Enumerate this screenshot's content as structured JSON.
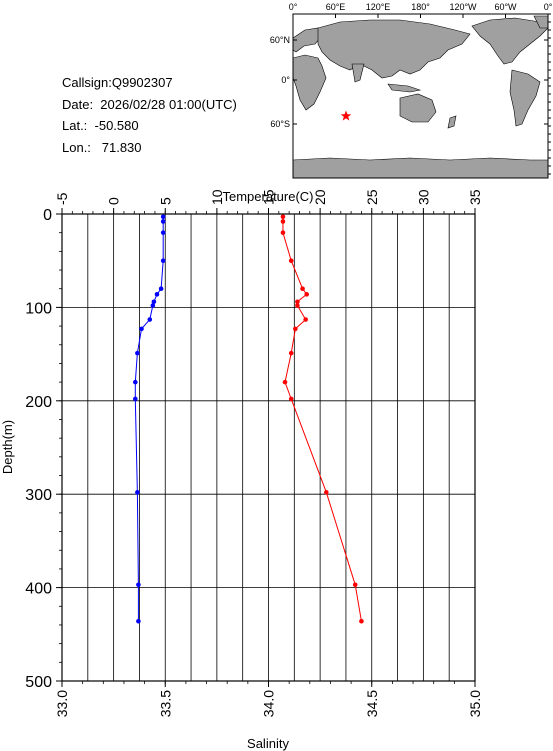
{
  "info": {
    "callsign": "Callsign:Q9902307",
    "date": "Date:  2026/02/28 01:00(UTC)",
    "lat": "Lat.:  -50.580",
    "lon": "Lon.:   71.830"
  },
  "map": {
    "top_labels": [
      "0°",
      "60°E",
      "120°E",
      "180°",
      "120°W",
      "60°W",
      "0°"
    ],
    "left_labels": [
      "60°N",
      "0°",
      "60°S"
    ],
    "land_color": "#a0a0a0",
    "ocean_color": "#ffffff",
    "marker_color": "#ff0000",
    "marker_icon": "star-icon"
  },
  "chart_data": {
    "type": "line",
    "title": "",
    "top_axis": {
      "label": "Temperature(C)",
      "range": [
        -5,
        35
      ],
      "ticks": [
        "-5",
        "0",
        "5",
        "10",
        "15",
        "20",
        "25",
        "30",
        "35"
      ]
    },
    "bottom_axis": {
      "label": "Salinity",
      "range": [
        33.0,
        35.0
      ],
      "ticks": [
        "33.0",
        "33.5",
        "34.0",
        "34.5",
        "35.0"
      ]
    },
    "y_axis": {
      "label": "Depth(m)",
      "range": [
        0,
        500
      ],
      "ticks": [
        "0",
        "100",
        "200",
        "300",
        "400",
        "500"
      ],
      "inverted": true
    },
    "grid": true,
    "series": [
      {
        "name": "",
        "axis": "temperature",
        "color": "#0000ff",
        "points": [
          {
            "x": 4.8,
            "y": 3
          },
          {
            "x": 4.8,
            "y": 8
          },
          {
            "x": 4.8,
            "y": 20
          },
          {
            "x": 4.8,
            "y": 50
          },
          {
            "x": 4.6,
            "y": 80
          },
          {
            "x": 4.2,
            "y": 86
          },
          {
            "x": 3.9,
            "y": 94
          },
          {
            "x": 3.8,
            "y": 98
          },
          {
            "x": 3.5,
            "y": 113
          },
          {
            "x": 2.7,
            "y": 123
          },
          {
            "x": 2.3,
            "y": 149
          },
          {
            "x": 2.1,
            "y": 180
          },
          {
            "x": 2.1,
            "y": 198
          },
          {
            "x": 2.3,
            "y": 298
          },
          {
            "x": 2.4,
            "y": 397
          },
          {
            "x": 2.4,
            "y": 436
          }
        ]
      },
      {
        "name": "",
        "axis": "salinity",
        "color": "#ff0000",
        "points": [
          {
            "x": 34.07,
            "y": 3
          },
          {
            "x": 34.07,
            "y": 8
          },
          {
            "x": 34.07,
            "y": 20
          },
          {
            "x": 34.11,
            "y": 50
          },
          {
            "x": 34.165,
            "y": 80
          },
          {
            "x": 34.185,
            "y": 86
          },
          {
            "x": 34.14,
            "y": 94
          },
          {
            "x": 34.14,
            "y": 98
          },
          {
            "x": 34.18,
            "y": 113
          },
          {
            "x": 34.13,
            "y": 123
          },
          {
            "x": 34.11,
            "y": 149
          },
          {
            "x": 34.08,
            "y": 180
          },
          {
            "x": 34.11,
            "y": 198
          },
          {
            "x": 34.28,
            "y": 298
          },
          {
            "x": 34.42,
            "y": 397
          },
          {
            "x": 34.45,
            "y": 436
          }
        ]
      }
    ]
  }
}
